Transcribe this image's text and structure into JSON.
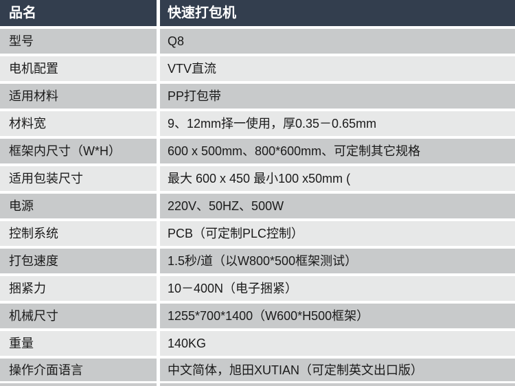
{
  "header": {
    "label": "品名",
    "value": "快速打包机"
  },
  "rows": [
    {
      "label": "型号",
      "value": "Q8"
    },
    {
      "label": "电机配置",
      "value": "VTV直流"
    },
    {
      "label": "适用材料",
      "value": "PP打包带"
    },
    {
      "label": "材料宽",
      "value": "9、12mm择一使用，厚0.35－0.65mm"
    },
    {
      "label": "框架内尺寸（W*H）",
      "value": "600 x 500mm、800*600mm、可定制其它规格"
    },
    {
      "label": "适用包装尺寸",
      "value": "最大 600 x 450 最小100 x50mm ("
    },
    {
      "label": "电源",
      "value": "220V、50HZ、500W"
    },
    {
      "label": "控制系统",
      "value": "PCB（可定制PLC控制）"
    },
    {
      "label": "打包速度",
      "value": "1.5秒/道（以W800*500框架测试）"
    },
    {
      "label": "捆紧力",
      "value": "10－400N（电子捆紧）"
    },
    {
      "label": "机械尺寸",
      "value": "1255*700*1400（W600*H500框架）"
    },
    {
      "label": "重量",
      "value": "140KG"
    },
    {
      "label": "操作介面语言",
      "value": "中文简体，旭田XUTIAN（可定制英文出口版）"
    }
  ],
  "colors": {
    "header_bg": "#333E4E",
    "header_text": "#FFFFFF",
    "row_dark": "#C8CACB",
    "row_light": "#E7E8E8",
    "bottom_strip": "#C9CACB",
    "text": "#1A1A1A",
    "divider": "#FFFFFF"
  }
}
